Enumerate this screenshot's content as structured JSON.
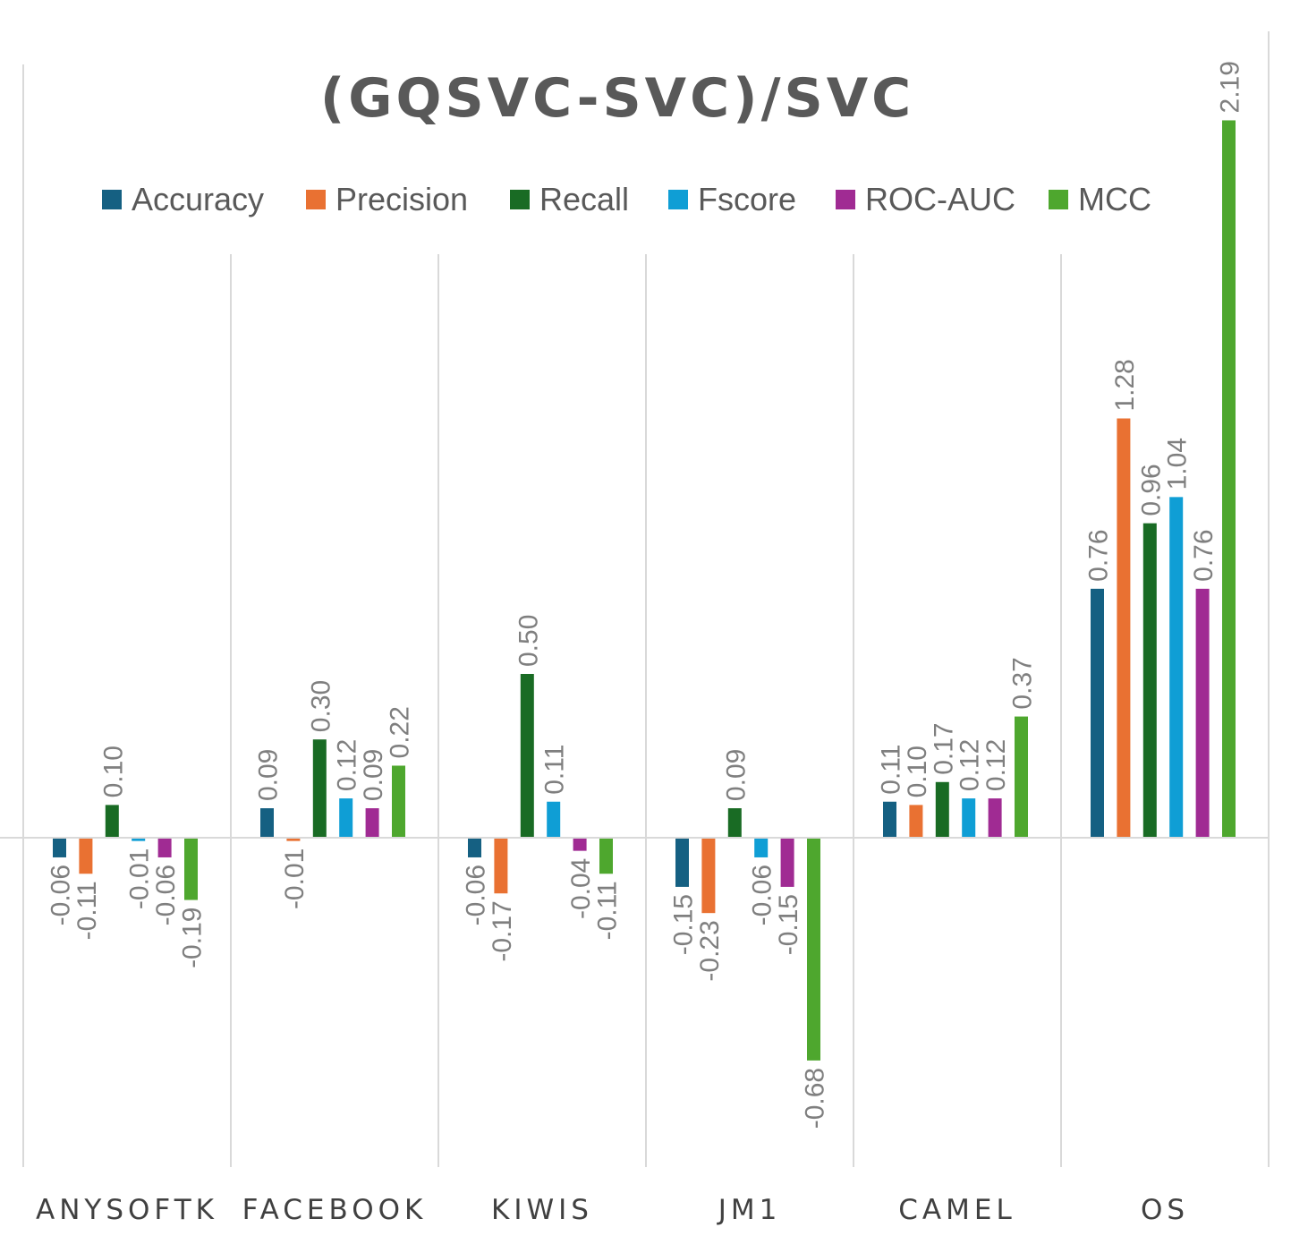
{
  "chart_data": {
    "type": "bar",
    "title": "(GQSVC-SVC)/SVC",
    "xlabel": "",
    "ylabel": "",
    "legend_position": "top",
    "grid": "vertical category separators",
    "categories": [
      "ANYSOFTK",
      "FACEBOOK",
      "KIWIS",
      "JM1",
      "CAMEL",
      "OS"
    ],
    "series": [
      {
        "name": "Accuracy",
        "color": "#156082",
        "values": [
          -0.06,
          0.09,
          -0.06,
          -0.15,
          0.11,
          0.76
        ]
      },
      {
        "name": "Precision",
        "color": "#E97132",
        "values": [
          -0.11,
          -0.01,
          -0.17,
          -0.23,
          0.1,
          1.28
        ]
      },
      {
        "name": "Recall",
        "color": "#196B24",
        "values": [
          0.1,
          0.3,
          0.5,
          0.09,
          0.17,
          0.96
        ]
      },
      {
        "name": "Fscore",
        "color": "#0F9ED5",
        "values": [
          -0.01,
          0.12,
          0.11,
          -0.06,
          0.12,
          1.04
        ]
      },
      {
        "name": "ROC-AUC",
        "color": "#A02B93",
        "values": [
          -0.06,
          0.09,
          -0.04,
          -0.15,
          0.12,
          0.76
        ]
      },
      {
        "name": "MCC",
        "color": "#4EA72E",
        "values": [
          -0.19,
          0.22,
          -0.11,
          -0.68,
          0.37,
          2.19
        ]
      }
    ],
    "ylim": [
      -1.0,
      2.35
    ]
  }
}
